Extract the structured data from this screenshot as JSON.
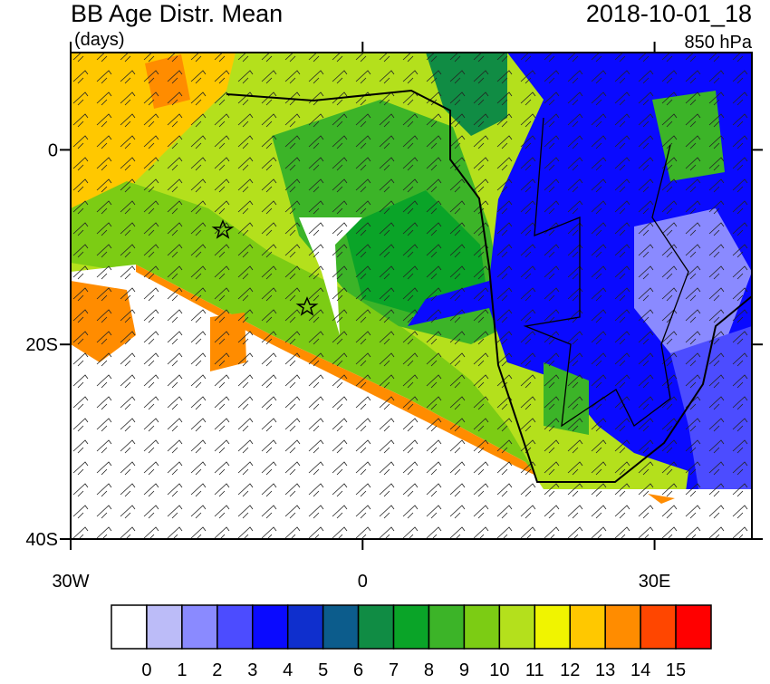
{
  "title": "BB Age Distr. Mean",
  "units": "(days)",
  "date": "2018-10-01_18",
  "level": "850 hPa",
  "lon_range": [
    -30,
    40
  ],
  "lat_range": [
    -40,
    10
  ],
  "x_axis": {
    "ticks": [
      {
        "value": -30,
        "label": "30W"
      },
      0,
      {
        "value": 30,
        "label": "30E"
      }
    ]
  },
  "y_axis": {
    "ticks": [
      0,
      {
        "value": -20,
        "label": "20S"
      },
      {
        "value": -40,
        "label": "40S"
      }
    ]
  },
  "colorbar": {
    "colors": [
      "#ffffff",
      "#bcbcf8",
      "#8a8aff",
      "#4c4cff",
      "#0a0aff",
      "#0f2fcd",
      "#0c5c8c",
      "#108c44",
      "#0aa428",
      "#3cb428",
      "#7ccc14",
      "#b4e01c",
      "#f0f400",
      "#ffc800",
      "#ff8c00",
      "#ff4600",
      "#ff0000"
    ],
    "labels": [
      0,
      1,
      2,
      3,
      4,
      5,
      6,
      7,
      8,
      9,
      10,
      11,
      12,
      13,
      14,
      15
    ]
  }
}
